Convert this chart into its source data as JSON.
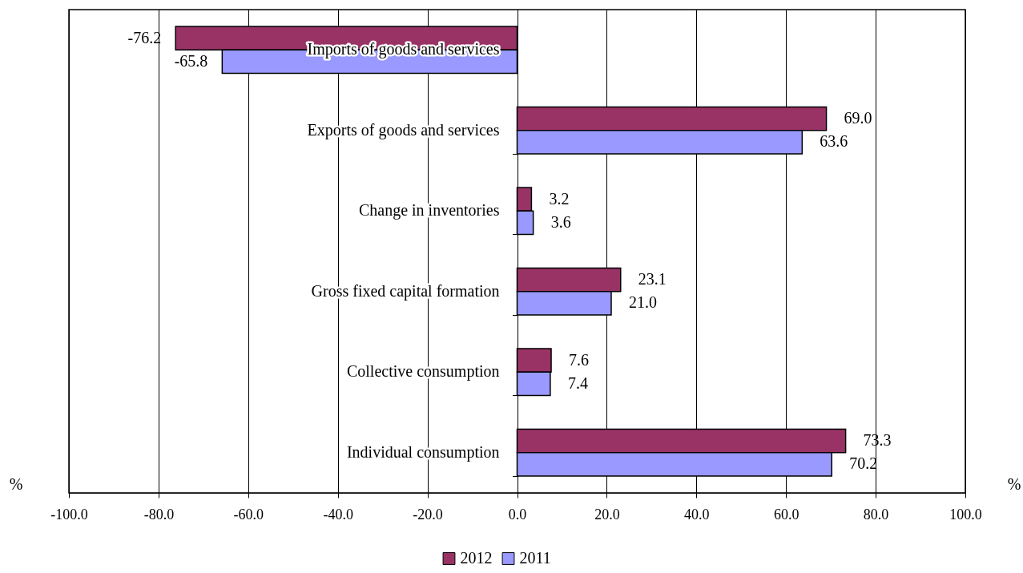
{
  "chart_data": {
    "type": "bar",
    "orientation": "horizontal",
    "categories": [
      "Imports of goods and services",
      "Exports of goods and services",
      "Change in inventories",
      "Gross fixed capital formation",
      "Collective consumption",
      "Individual consumption"
    ],
    "series": [
      {
        "name": "2012",
        "color": "#993366",
        "values": [
          -76.2,
          69.0,
          3.2,
          23.1,
          7.6,
          73.3
        ],
        "value_labels": [
          "-76.2",
          "69.0",
          "3.2",
          "23.1",
          "7.6",
          "73.3"
        ]
      },
      {
        "name": "2011",
        "color": "#9999ff",
        "values": [
          -65.8,
          63.6,
          3.6,
          21.0,
          7.4,
          70.2
        ],
        "value_labels": [
          "-65.8",
          "63.6",
          "3.6",
          "21.0",
          "7.4",
          "70.2"
        ]
      }
    ],
    "xlim": [
      -100,
      100
    ],
    "xticks": [
      {
        "value": -100,
        "label": "-100.0"
      },
      {
        "value": -80,
        "label": "-80.0"
      },
      {
        "value": -60,
        "label": "-60.0"
      },
      {
        "value": -40,
        "label": "-40.0"
      },
      {
        "value": -20,
        "label": "-20.0"
      },
      {
        "value": 0,
        "label": "0.0"
      },
      {
        "value": 20,
        "label": "20.0"
      },
      {
        "value": 40,
        "label": "40.0"
      },
      {
        "value": 60,
        "label": "60.0"
      },
      {
        "value": 80,
        "label": "80.0"
      },
      {
        "value": 100,
        "label": "100.0"
      }
    ],
    "annotations": [
      "%",
      "%"
    ],
    "grid": "x",
    "legend": "bottom"
  }
}
